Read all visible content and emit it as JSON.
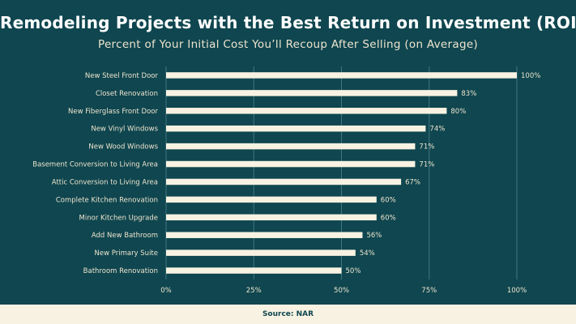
{
  "header": {
    "title": "Remodeling Projects with the Best Return on Investment (ROI)",
    "subtitle": "Percent of Your Initial Cost You’ll Recoup After Selling (on Average)"
  },
  "footer": {
    "source": "Source: NAR"
  },
  "colors": {
    "background": "#0f464f",
    "bar": "#f8f2e2",
    "text": "#eee4cf",
    "grid": "#3f7780",
    "footer_bg": "#f8f2e2"
  },
  "chart_data": {
    "type": "bar",
    "orientation": "horizontal",
    "title": "Remodeling Projects with the Best Return on Investment (ROI)",
    "subtitle": "Percent of Your Initial Cost You’ll Recoup After Selling (on Average)",
    "categories": [
      "New Steel Front Door",
      "Closet Renovation",
      "New Fiberglass Front Door",
      "New Vinyl Windows",
      "New Wood Windows",
      "Basement Conversion to Living Area",
      "Attic Conversion to Living Area",
      "Complete Kitchen Renovation",
      "Minor Kitchen Upgrade",
      "Add New Bathroom",
      "New Primary Suite",
      "Bathroom Renovation"
    ],
    "values": [
      100,
      83,
      80,
      74,
      71,
      71,
      67,
      60,
      60,
      56,
      54,
      50
    ],
    "value_labels": [
      "100%",
      "83%",
      "80%",
      "74%",
      "71%",
      "71%",
      "67%",
      "60%",
      "60%",
      "56%",
      "54%",
      "50%"
    ],
    "xlim": [
      0,
      100
    ],
    "xticks": [
      0,
      25,
      50,
      75,
      100
    ],
    "xtick_labels": [
      "0%",
      "25%",
      "50%",
      "75%",
      "100%"
    ],
    "grid": true,
    "legend": "none"
  }
}
